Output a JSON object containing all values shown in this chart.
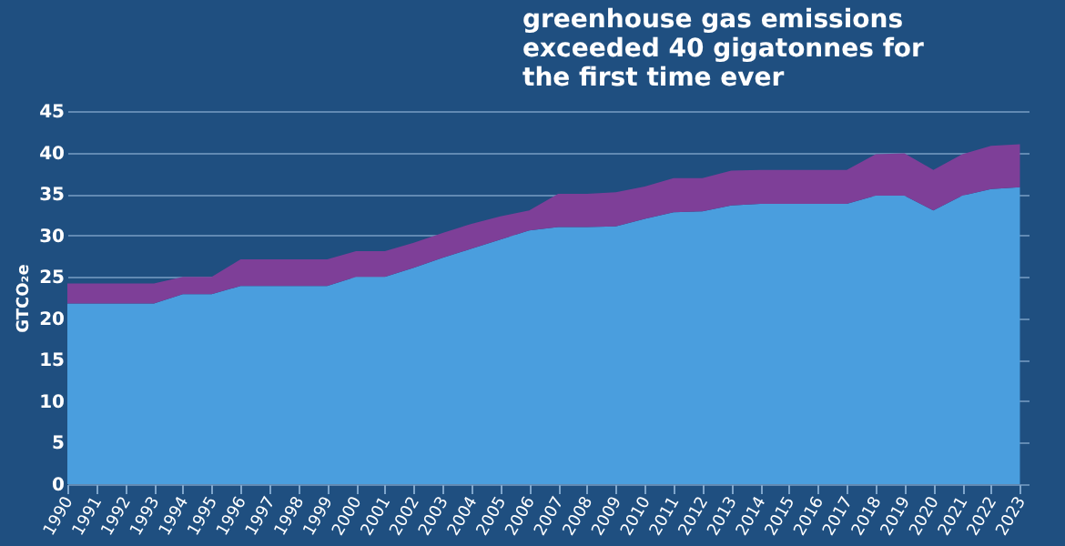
{
  "chart_data": {
    "type": "area",
    "stacked": true,
    "title": "greenhouse gas emissions\nexceeded 40 gigatonnes for\nthe first time ever",
    "ylabel": "GTCO₂e",
    "categories": [
      "1990",
      "1991",
      "1992",
      "1993",
      "1994",
      "1995",
      "1996",
      "1997",
      "1998",
      "1999",
      "2000",
      "2001",
      "2002",
      "2003",
      "2004",
      "2005",
      "2006",
      "2007",
      "2008",
      "2009",
      "2010",
      "2011",
      "2012",
      "2013",
      "2014",
      "2015",
      "2016",
      "2017",
      "2018",
      "2019",
      "2020",
      "2021",
      "2022",
      "2023"
    ],
    "series": [
      {
        "color": "#4a9ede",
        "values": [
          21.8,
          21.8,
          21.8,
          21.8,
          22.9,
          22.9,
          23.9,
          23.9,
          23.9,
          23.9,
          25.0,
          25.0,
          26.1,
          27.3,
          28.4,
          29.5,
          30.6,
          31.0,
          31.0,
          31.1,
          32.0,
          32.8,
          32.9,
          33.6,
          33.8,
          33.8,
          33.8,
          33.8,
          34.8,
          34.8,
          33.0,
          34.8,
          35.6,
          35.8
        ]
      },
      {
        "color": "#7e3f98",
        "values": [
          2.4,
          2.4,
          2.4,
          2.4,
          2.1,
          2.1,
          3.2,
          3.2,
          3.2,
          3.2,
          3.1,
          3.1,
          3.0,
          3.0,
          3.0,
          2.8,
          2.4,
          4.0,
          4.0,
          4.1,
          3.9,
          4.1,
          4.0,
          4.2,
          4.1,
          4.1,
          4.1,
          4.1,
          5.0,
          5.1,
          4.9,
          5.0,
          5.2,
          5.2
        ]
      }
    ],
    "ylim": [
      0,
      45
    ],
    "yticks": [
      0,
      5,
      10,
      15,
      20,
      25,
      30,
      35,
      40,
      45
    ],
    "grid": "y"
  }
}
